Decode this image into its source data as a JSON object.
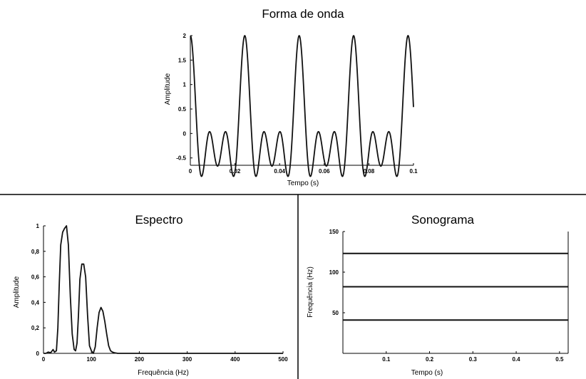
{
  "chart_data": [
    {
      "id": "waveform",
      "type": "line",
      "title": "Forma de onda",
      "xlabel": "Tempo (s)",
      "ylabel": "Amplitude",
      "xlim": [
        0,
        0.1
      ],
      "ylim": [
        -0.65,
        2
      ],
      "xticks": [
        0,
        0.02,
        0.04,
        0.06,
        0.08,
        0.1
      ],
      "xtick_labels": [
        "0",
        "0.02",
        "0.04",
        "0.06",
        "0.08",
        "0.1"
      ],
      "yticks": [
        -0.5,
        0,
        0.5,
        1,
        1.5,
        2
      ],
      "ytick_labels": [
        "-0.5",
        "0",
        "0.5",
        "1",
        "1.5",
        "2"
      ],
      "grid": false,
      "series": [
        {
          "components_hz": [
            41,
            82,
            123
          ],
          "x_end": 0.1
        }
      ]
    },
    {
      "id": "spectrum",
      "type": "line",
      "title": "Espectro",
      "xlabel": "Frequência (Hz)",
      "ylabel": "Amplitude",
      "xlim": [
        0,
        500
      ],
      "ylim": [
        0,
        1
      ],
      "xticks": [
        0,
        100,
        200,
        300,
        400,
        500
      ],
      "xtick_labels": [
        "0",
        "100",
        "200",
        "300",
        "400",
        "500"
      ],
      "yticks": [
        0,
        0.2,
        0.4,
        0.6,
        0.8,
        1
      ],
      "ytick_labels": [
        "0",
        "0,2",
        "0,4",
        "0,6",
        "0,8",
        "1"
      ],
      "grid": false,
      "series": [
        {
          "x": [
            0,
            5,
            10,
            15,
            20,
            23,
            27,
            30,
            33,
            36,
            40,
            44,
            48,
            52,
            56,
            60,
            64,
            67,
            70,
            73,
            76,
            80,
            84,
            88,
            92,
            96,
            100,
            104,
            108,
            112,
            116,
            120,
            124,
            128,
            132,
            136,
            140,
            144,
            148,
            155,
            165,
            180,
            200,
            300,
            400,
            500
          ],
          "y": [
            0,
            0,
            0.01,
            0.005,
            0.03,
            0.01,
            0.02,
            0.2,
            0.55,
            0.85,
            0.95,
            0.98,
            1.0,
            0.85,
            0.45,
            0.15,
            0.03,
            0.02,
            0.08,
            0.3,
            0.58,
            0.7,
            0.7,
            0.6,
            0.3,
            0.06,
            0.02,
            0.0,
            0.05,
            0.2,
            0.32,
            0.36,
            0.33,
            0.25,
            0.15,
            0.06,
            0.02,
            0.01,
            0.005,
            0.0,
            0.0,
            0.0,
            0.0,
            0.0,
            0.0,
            0.0
          ]
        }
      ]
    },
    {
      "id": "sonogram",
      "type": "line",
      "title": "Sonograma",
      "xlabel": "Tempo (s)",
      "ylabel": "Frequência (Hz)",
      "xlim": [
        0,
        0.52
      ],
      "ylim": [
        0,
        150
      ],
      "xticks": [
        0.1,
        0.2,
        0.3,
        0.4,
        0.5
      ],
      "xtick_labels": [
        "0.1",
        "0.2",
        "0.3",
        "0.4",
        "0.5"
      ],
      "yticks": [
        50,
        100,
        150
      ],
      "ytick_labels": [
        "50",
        "100",
        "150"
      ],
      "grid": false,
      "bands_hz": [
        41,
        82,
        123
      ]
    }
  ]
}
